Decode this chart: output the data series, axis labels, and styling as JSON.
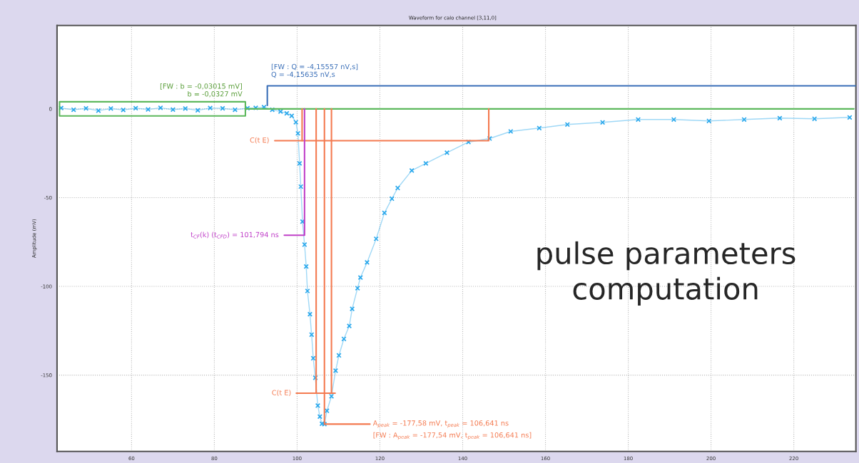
{
  "chart_data": {
    "type": "line",
    "title": "Waveform for calo channel [3,11,0]",
    "ylabel": "Amplitude (mV)",
    "xlim": [
      42,
      235
    ],
    "ylim": [
      -193,
      47
    ],
    "xticks": [
      60,
      80,
      100,
      120,
      140,
      160,
      180,
      200,
      220
    ],
    "yticks": [
      -150,
      -100,
      -50,
      0
    ],
    "grid": true,
    "series": [
      {
        "color": "#2aa8ec",
        "marker": "cross",
        "x": [
          43,
          46,
          49,
          52,
          55,
          58,
          61,
          64,
          67,
          70,
          73,
          76,
          79,
          82,
          85,
          88,
          90,
          92,
          94,
          96,
          97.5,
          98.7,
          99.7,
          100.2,
          100.6,
          100.9,
          101.3,
          101.8,
          102.2,
          102.5,
          103.1,
          103.5,
          103.9,
          104.4,
          105,
          105.5,
          106,
          106.6,
          107.2,
          108.3,
          109.3,
          110.1,
          111.3,
          112.6,
          113.3,
          114.6,
          115.3,
          116.9,
          119.1,
          121.1,
          122.9,
          124.3,
          127.7,
          131.1,
          136.2,
          141.4,
          146.5,
          151.6,
          158.5,
          165.3,
          173.8,
          182.4,
          191,
          199.5,
          208,
          216.6,
          225,
          233.5
        ],
        "values": [
          0.5,
          -0.5,
          0.3,
          -1,
          0.2,
          -0.6,
          0.4,
          -0.3,
          0.6,
          -0.4,
          0.2,
          -0.8,
          0.5,
          0.3,
          -0.5,
          0.4,
          0.6,
          1,
          -0.5,
          -1.5,
          -2.5,
          -3.9,
          -7.5,
          -13.8,
          -30.7,
          -43.8,
          -63.5,
          -76.5,
          -88.8,
          -102.6,
          -115.7,
          -127.2,
          -140.5,
          -151.5,
          -167.2,
          -173.4,
          -177.4,
          -177.6,
          -170.1,
          -161.9,
          -147.5,
          -138.9,
          -129.6,
          -122.3,
          -112.7,
          -101,
          -95,
          -86.5,
          -73.2,
          -58.6,
          -50.6,
          -44.6,
          -34.7,
          -30.7,
          -24.7,
          -18.7,
          -16.7,
          -12.7,
          -10.8,
          -8.8,
          -7.6,
          -6,
          -6,
          -6.8,
          -6,
          -5.2,
          -5.6,
          -4.8
        ]
      },
      {
        "color": "#5cb85c",
        "x": [
          87.5,
          87.5,
          42.6,
          42.6,
          87.5,
          87.5,
          234.5
        ],
        "values": [
          0,
          4,
          4,
          -4,
          -4,
          0,
          0
        ]
      },
      {
        "color": "#3a6fb8",
        "x": [
          92.8,
          92.8,
          235
        ],
        "values": [
          2,
          13,
          13
        ]
      },
      {
        "color": "#f47a50",
        "x": [
          94.6,
          146.3,
          146.3
        ],
        "values": [
          -17.9,
          -17.9,
          0
        ]
      },
      {
        "color": "#f47a50",
        "x": [
          101.2,
          101.2
        ],
        "values": [
          0,
          -17.9
        ]
      },
      {
        "color": "#c040c8",
        "x": [
          96.9,
          101.794,
          101.794
        ],
        "values": [
          -71.2,
          -71.2,
          0
        ]
      },
      {
        "color": "#f47a50",
        "x": [
          99.8,
          104.6,
          104.6,
          104.6,
          108.3,
          108.3,
          108.3,
          109.2
        ],
        "values": [
          -160.2,
          -160.2,
          0,
          -160.2,
          -160.2,
          0,
          -160.2,
          -160.2
        ]
      },
      {
        "color": "#f47a50",
        "x": [
          106.6,
          106.6,
          117.6
        ],
        "values": [
          0,
          -177.6,
          -177.6
        ]
      }
    ],
    "annotations": [
      {
        "text": "[FW : b = -0,03015 mV]\nb = -0,0327 mV",
        "x": 87.5,
        "y": 4
      },
      {
        "text": "[FW : Q = -4,15557 nV,s]\nQ = -4,15635 nV,s",
        "x": 93,
        "y": 15
      },
      {
        "text": "C(t E)",
        "x": 94,
        "y": -17.9
      },
      {
        "text": "t$_{CF}$(k) (t$_{CFD}$) = 101,794 ns",
        "x": 96.3,
        "y": -71.2
      },
      {
        "text": "C(t E)",
        "x": 99.3,
        "y": -160.2
      },
      {
        "text": "A$_{peak}$ = -177,58 mV, t$_{peak}$ = 106,641 ns",
        "x": 117.6,
        "y": -177.6
      },
      {
        "text": "[FW : A$_{peak}$ = -177,54 mV, t$_{peak}$ = 106,641 ns]",
        "x": 117.6,
        "y": -177.6
      },
      "pulse parameters\ncomputation"
    ]
  }
}
